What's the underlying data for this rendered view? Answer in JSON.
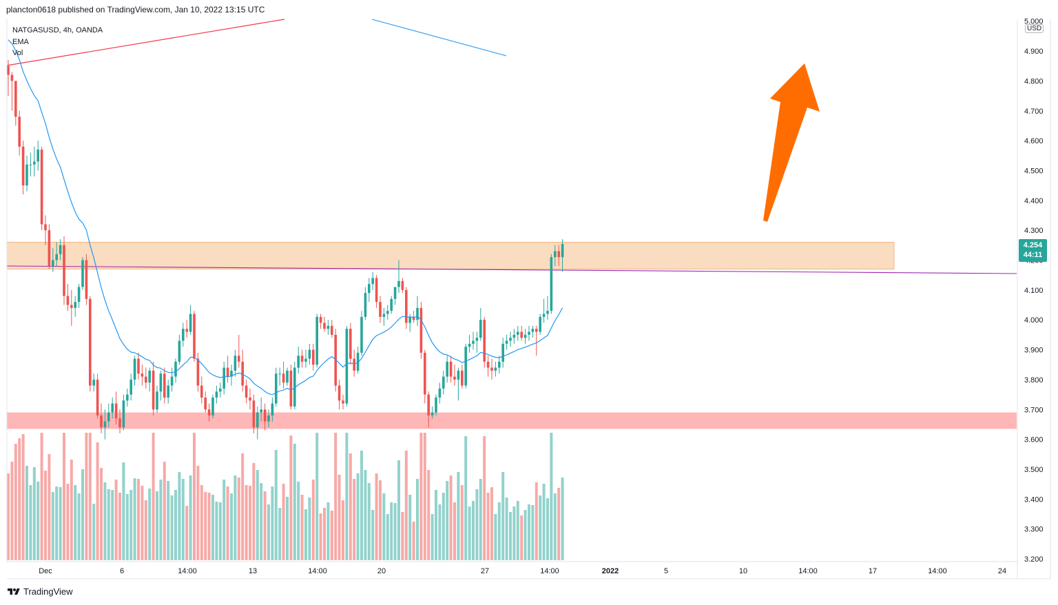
{
  "header": {
    "published_line": "plancton0618 published on TradingView.com, Jan 10, 2022 13:15 UTC"
  },
  "legend": {
    "symbol": "NATGASUSD, 4h, OANDA",
    "ema": "EMA",
    "vol": "Vol"
  },
  "price_scale": {
    "currency": "USD",
    "ticks": [
      "5.000",
      "4.900",
      "4.800",
      "4.700",
      "4.600",
      "4.500",
      "4.400",
      "4.300",
      "4.200",
      "4.100",
      "4.000",
      "3.900",
      "3.800",
      "3.700",
      "3.600",
      "3.500",
      "3.400",
      "3.300",
      "3.200"
    ]
  },
  "last_price": {
    "value": "4.254",
    "countdown": "44:11"
  },
  "time_scale": {
    "labels": [
      "Dec",
      "6",
      "14:00",
      "13",
      "14:00",
      "20",
      "27",
      "14:00",
      "2022",
      "5",
      "10",
      "14:00",
      "17",
      "14:00",
      "24"
    ]
  },
  "footer": {
    "brand": "TradingView"
  },
  "colors": {
    "up": "#26a69a",
    "down": "#ef5350",
    "ema": "#2196f3",
    "resistance_zone": "#f5c08c",
    "support_zone": "#ff9e9e",
    "arrow": "#ff6d00",
    "trendline_red": "#f23645",
    "trendline_purple": "#9c27b0"
  },
  "chart_data": {
    "type": "candlestick",
    "symbol": "NATGASUSD",
    "interval": "4h",
    "ylim": [
      3.2,
      5.0
    ],
    "series": [
      {
        "name": "NATGASUSD",
        "kind": "ohlc",
        "values": [
          [
            4.85,
            4.87,
            4.75,
            4.82
          ],
          [
            4.82,
            4.83,
            4.7,
            4.8
          ],
          [
            4.8,
            4.8,
            4.65,
            4.68
          ],
          [
            4.68,
            4.7,
            4.55,
            4.58
          ],
          [
            4.58,
            4.6,
            4.42,
            4.45
          ],
          [
            4.45,
            4.55,
            4.43,
            4.52
          ],
          [
            4.52,
            4.56,
            4.48,
            4.52
          ],
          [
            4.52,
            4.58,
            4.48,
            4.53
          ],
          [
            4.53,
            4.6,
            4.5,
            4.57
          ],
          [
            4.57,
            4.58,
            4.3,
            4.32
          ],
          [
            4.32,
            4.35,
            4.25,
            4.3
          ],
          [
            4.3,
            4.32,
            4.17,
            4.18
          ],
          [
            4.18,
            4.24,
            4.16,
            4.2
          ],
          [
            4.2,
            4.26,
            4.18,
            4.22
          ],
          [
            4.22,
            4.27,
            4.2,
            4.25
          ],
          [
            4.25,
            4.28,
            4.05,
            4.08
          ],
          [
            4.08,
            4.12,
            4.03,
            4.05
          ],
          [
            4.05,
            4.1,
            3.98,
            4.04
          ],
          [
            4.04,
            4.08,
            4.01,
            4.06
          ],
          [
            4.06,
            4.12,
            4.04,
            4.11
          ],
          [
            4.11,
            4.21,
            4.1,
            4.2
          ],
          [
            4.2,
            4.22,
            4.05,
            4.07
          ],
          [
            4.07,
            4.08,
            3.76,
            3.78
          ],
          [
            3.78,
            3.82,
            3.76,
            3.8
          ],
          [
            3.8,
            3.82,
            3.67,
            3.68
          ],
          [
            3.68,
            3.72,
            3.62,
            3.64
          ],
          [
            3.64,
            3.7,
            3.6,
            3.66
          ],
          [
            3.66,
            3.72,
            3.64,
            3.69
          ],
          [
            3.69,
            3.74,
            3.67,
            3.72
          ],
          [
            3.72,
            3.76,
            3.65,
            3.67
          ],
          [
            3.67,
            3.7,
            3.62,
            3.64
          ],
          [
            3.64,
            3.75,
            3.63,
            3.73
          ],
          [
            3.73,
            3.77,
            3.71,
            3.75
          ],
          [
            3.75,
            3.82,
            3.73,
            3.8
          ],
          [
            3.8,
            3.88,
            3.78,
            3.87
          ],
          [
            3.87,
            3.89,
            3.8,
            3.82
          ],
          [
            3.82,
            3.85,
            3.78,
            3.81
          ],
          [
            3.81,
            3.84,
            3.77,
            3.79
          ],
          [
            3.79,
            3.84,
            3.76,
            3.83
          ],
          [
            3.83,
            3.86,
            3.68,
            3.7
          ],
          [
            3.7,
            3.78,
            3.69,
            3.76
          ],
          [
            3.76,
            3.83,
            3.73,
            3.82
          ],
          [
            3.82,
            3.84,
            3.72,
            3.74
          ],
          [
            3.74,
            3.8,
            3.72,
            3.78
          ],
          [
            3.78,
            3.84,
            3.76,
            3.81
          ],
          [
            3.81,
            3.87,
            3.79,
            3.86
          ],
          [
            3.86,
            3.95,
            3.85,
            3.93
          ],
          [
            3.93,
            3.99,
            3.91,
            3.97
          ],
          [
            3.97,
            4.0,
            3.94,
            3.96
          ],
          [
            3.96,
            4.05,
            3.95,
            4.02
          ],
          [
            4.02,
            4.03,
            3.86,
            3.87
          ],
          [
            3.87,
            3.89,
            3.76,
            3.78
          ],
          [
            3.78,
            3.81,
            3.72,
            3.74
          ],
          [
            3.74,
            3.76,
            3.69,
            3.7
          ],
          [
            3.7,
            3.72,
            3.66,
            3.68
          ],
          [
            3.68,
            3.75,
            3.67,
            3.74
          ],
          [
            3.74,
            3.78,
            3.72,
            3.76
          ],
          [
            3.76,
            3.79,
            3.74,
            3.77
          ],
          [
            3.77,
            3.86,
            3.75,
            3.84
          ],
          [
            3.84,
            3.88,
            3.79,
            3.81
          ],
          [
            3.81,
            3.85,
            3.78,
            3.83
          ],
          [
            3.83,
            3.9,
            3.81,
            3.88
          ],
          [
            3.88,
            3.95,
            3.84,
            3.86
          ],
          [
            3.86,
            3.9,
            3.76,
            3.78
          ],
          [
            3.78,
            3.8,
            3.72,
            3.74
          ],
          [
            3.74,
            3.77,
            3.7,
            3.73
          ],
          [
            3.73,
            3.75,
            3.62,
            3.64
          ],
          [
            3.64,
            3.71,
            3.6,
            3.69
          ],
          [
            3.69,
            3.74,
            3.66,
            3.7
          ],
          [
            3.7,
            3.72,
            3.63,
            3.66
          ],
          [
            3.66,
            3.7,
            3.64,
            3.68
          ],
          [
            3.68,
            3.74,
            3.66,
            3.72
          ],
          [
            3.72,
            3.84,
            3.71,
            3.82
          ],
          [
            3.82,
            3.84,
            3.78,
            3.82
          ],
          [
            3.82,
            3.86,
            3.77,
            3.79
          ],
          [
            3.79,
            3.84,
            3.78,
            3.83
          ],
          [
            3.83,
            3.85,
            3.7,
            3.71
          ],
          [
            3.71,
            3.86,
            3.7,
            3.84
          ],
          [
            3.84,
            3.91,
            3.82,
            3.88
          ],
          [
            3.88,
            3.9,
            3.84,
            3.86
          ],
          [
            3.86,
            3.9,
            3.84,
            3.87
          ],
          [
            3.87,
            3.92,
            3.85,
            3.9
          ],
          [
            3.9,
            3.92,
            3.83,
            3.85
          ],
          [
            3.85,
            4.02,
            3.84,
            4.01
          ],
          [
            4.01,
            4.02,
            3.97,
            3.99
          ],
          [
            3.99,
            4.01,
            3.96,
            3.97
          ],
          [
            3.97,
            4.0,
            3.95,
            3.98
          ],
          [
            3.98,
            4.0,
            3.94,
            3.95
          ],
          [
            3.95,
            3.97,
            3.76,
            3.78
          ],
          [
            3.78,
            3.8,
            3.7,
            3.73
          ],
          [
            3.73,
            3.75,
            3.7,
            3.72
          ],
          [
            3.72,
            3.98,
            3.71,
            3.97
          ],
          [
            3.97,
            3.99,
            3.85,
            3.87
          ],
          [
            3.87,
            3.9,
            3.81,
            3.83
          ],
          [
            3.83,
            3.91,
            3.82,
            3.89
          ],
          [
            3.89,
            4.03,
            3.88,
            4.01
          ],
          [
            4.01,
            4.11,
            4.0,
            4.09
          ],
          [
            4.09,
            4.14,
            4.06,
            4.12
          ],
          [
            4.12,
            4.16,
            4.1,
            4.14
          ],
          [
            4.14,
            4.15,
            4.04,
            4.06
          ],
          [
            4.06,
            4.08,
            3.99,
            4.01
          ],
          [
            4.01,
            4.04,
            3.98,
            4.02
          ],
          [
            4.02,
            4.05,
            4.0,
            4.03
          ],
          [
            4.03,
            4.08,
            4.02,
            4.07
          ],
          [
            4.07,
            4.1,
            4.05,
            4.11
          ],
          [
            4.11,
            4.2,
            4.09,
            4.13
          ],
          [
            4.13,
            4.14,
            4.09,
            4.1
          ],
          [
            4.1,
            4.11,
            3.97,
            3.99
          ],
          [
            3.99,
            4.02,
            3.96,
            4.01
          ],
          [
            4.01,
            4.03,
            3.99,
            4.0
          ],
          [
            4.0,
            4.08,
            3.98,
            4.04
          ],
          [
            4.04,
            4.06,
            3.87,
            3.89
          ],
          [
            3.89,
            3.9,
            3.72,
            3.75
          ],
          [
            3.75,
            3.76,
            3.64,
            3.68
          ],
          [
            3.68,
            3.71,
            3.67,
            3.69
          ],
          [
            3.69,
            3.75,
            3.68,
            3.74
          ],
          [
            3.74,
            3.79,
            3.72,
            3.77
          ],
          [
            3.77,
            3.83,
            3.75,
            3.81
          ],
          [
            3.81,
            3.88,
            3.79,
            3.86
          ],
          [
            3.86,
            3.88,
            3.79,
            3.81
          ],
          [
            3.81,
            3.85,
            3.78,
            3.8
          ],
          [
            3.8,
            3.84,
            3.73,
            3.83
          ],
          [
            3.83,
            3.85,
            3.77,
            3.78
          ],
          [
            3.78,
            3.92,
            3.77,
            3.91
          ],
          [
            3.91,
            3.95,
            3.89,
            3.92
          ],
          [
            3.92,
            3.96,
            3.9,
            3.93
          ],
          [
            3.93,
            3.96,
            3.89,
            3.94
          ],
          [
            3.94,
            4.04,
            3.93,
            4.0
          ],
          [
            4.0,
            4.01,
            3.84,
            3.86
          ],
          [
            3.86,
            3.88,
            3.81,
            3.84
          ],
          [
            3.84,
            3.87,
            3.8,
            3.83
          ],
          [
            3.83,
            3.86,
            3.81,
            3.84
          ],
          [
            3.84,
            3.88,
            3.82,
            3.86
          ],
          [
            3.86,
            3.94,
            3.84,
            3.92
          ],
          [
            3.92,
            3.95,
            3.9,
            3.93
          ],
          [
            3.93,
            3.96,
            3.91,
            3.94
          ],
          [
            3.94,
            3.97,
            3.92,
            3.95
          ],
          [
            3.95,
            3.98,
            3.93,
            3.96
          ],
          [
            3.96,
            3.98,
            3.93,
            3.94
          ],
          [
            3.94,
            3.97,
            3.92,
            3.95
          ],
          [
            3.95,
            3.98,
            3.93,
            3.96
          ],
          [
            3.96,
            3.98,
            3.94,
            3.97
          ],
          [
            3.97,
            3.98,
            3.88,
            3.96
          ],
          [
            3.96,
            4.02,
            3.95,
            4.01
          ],
          [
            4.01,
            4.07,
            3.99,
            4.02
          ],
          [
            4.02,
            4.08,
            4.0,
            4.03
          ],
          [
            4.03,
            4.22,
            4.02,
            4.21
          ],
          [
            4.21,
            4.25,
            4.18,
            4.23
          ],
          [
            4.23,
            4.25,
            4.18,
            4.21
          ],
          [
            4.21,
            4.27,
            4.16,
            4.254
          ]
        ]
      },
      {
        "name": "EMA",
        "kind": "line"
      },
      {
        "name": "Vol",
        "kind": "histogram"
      }
    ],
    "zones": [
      {
        "name": "resistance",
        "y_min": 4.17,
        "y_max": 4.26
      },
      {
        "name": "support",
        "y_min": 3.635,
        "y_max": 3.69
      }
    ],
    "x_axis_labels": [
      "Dec",
      "6",
      "14:00",
      "13",
      "14:00",
      "20",
      "27",
      "14:00",
      "2022",
      "5",
      "10",
      "14:00",
      "17",
      "14:00",
      "24"
    ],
    "grid": false,
    "legend_position": "top-left"
  }
}
